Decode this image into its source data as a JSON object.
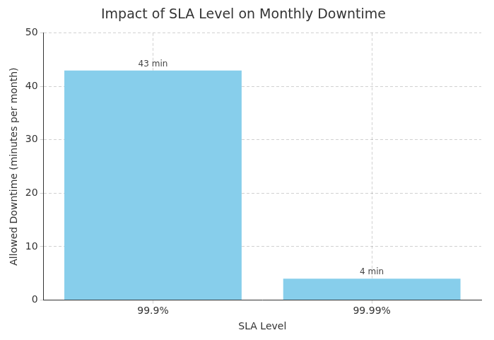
{
  "chart_data": {
    "type": "bar",
    "title": "Impact of SLA Level on Monthly Downtime",
    "x_label": "SLA Level",
    "y_label": "Allowed Downtime (minutes per month)",
    "categories": [
      "99.9%",
      "99.99%"
    ],
    "values": [
      43,
      4
    ],
    "value_labels": [
      "43 min",
      "4 min"
    ],
    "color": "#87ceeb",
    "ylim": [
      0,
      50
    ],
    "yticks": [
      0,
      10,
      20,
      30,
      40,
      50
    ],
    "grid": true,
    "data_labels": true
  }
}
